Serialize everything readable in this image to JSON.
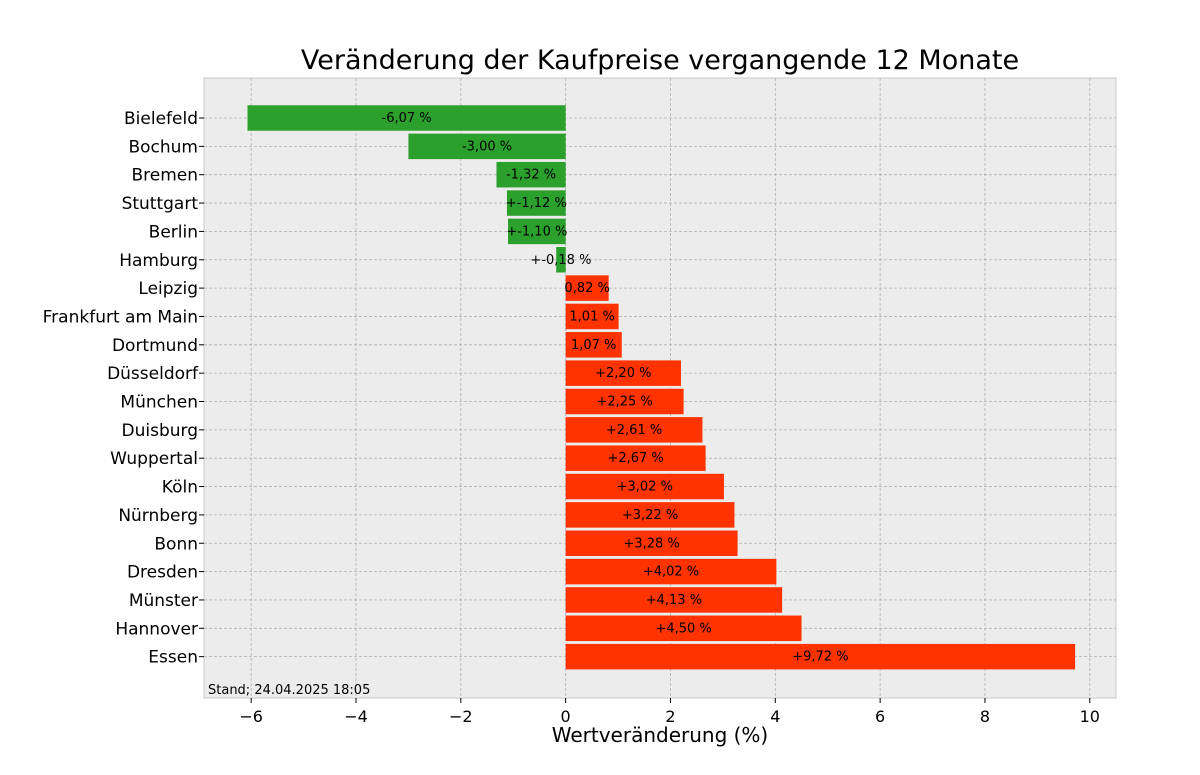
{
  "chart_data": {
    "type": "bar",
    "orientation": "horizontal",
    "title": "Veränderung der Kaufpreise vergangende 12 Monate",
    "xlabel": "Wertveränderung (%)",
    "ylabel": "",
    "xlim": [
      -6.9,
      10.5
    ],
    "xticks": [
      -6,
      -4,
      -2,
      0,
      2,
      4,
      6,
      8,
      10
    ],
    "xtick_labels": [
      "−6",
      "−4",
      "−2",
      "0",
      "2",
      "4",
      "6",
      "8",
      "10"
    ],
    "grid": true,
    "categories": [
      "Bielefeld",
      "Bochum",
      "Bremen",
      "Stuttgart",
      "Berlin",
      "Hamburg",
      "Leipzig",
      "Frankfurt am Main",
      "Dortmund",
      "Düsseldorf",
      "München",
      "Duisburg",
      "Wuppertal",
      "Köln",
      "Nürnberg",
      "Bonn",
      "Dresden",
      "Münster",
      "Hannover",
      "Essen"
    ],
    "values": [
      -6.07,
      -3.0,
      -1.32,
      -1.12,
      -1.1,
      -0.18,
      0.82,
      1.01,
      1.07,
      2.2,
      2.25,
      2.61,
      2.67,
      3.02,
      3.22,
      3.28,
      4.02,
      4.13,
      4.5,
      9.72
    ],
    "value_labels": [
      "-6,07 %",
      "-3,00 %",
      "-1,32 %",
      "+-1,12 %",
      "+-1,10 %",
      "+-0,18 %",
      "0,82 %",
      "1,01 %",
      "1,07 %",
      "+2,20 %",
      "+2,25 %",
      "+2,61 %",
      "+2,67 %",
      "+3,02 %",
      "+3,22 %",
      "+3,28 %",
      "+4,02 %",
      "+4,13 %",
      "+4,50 %",
      "+9,72 %"
    ],
    "colors": {
      "negative": "#2ca02c",
      "positive": "#ff3300",
      "plot_background": "#ececec"
    },
    "annotation": "Stand; 24.04.2025 18:05"
  }
}
